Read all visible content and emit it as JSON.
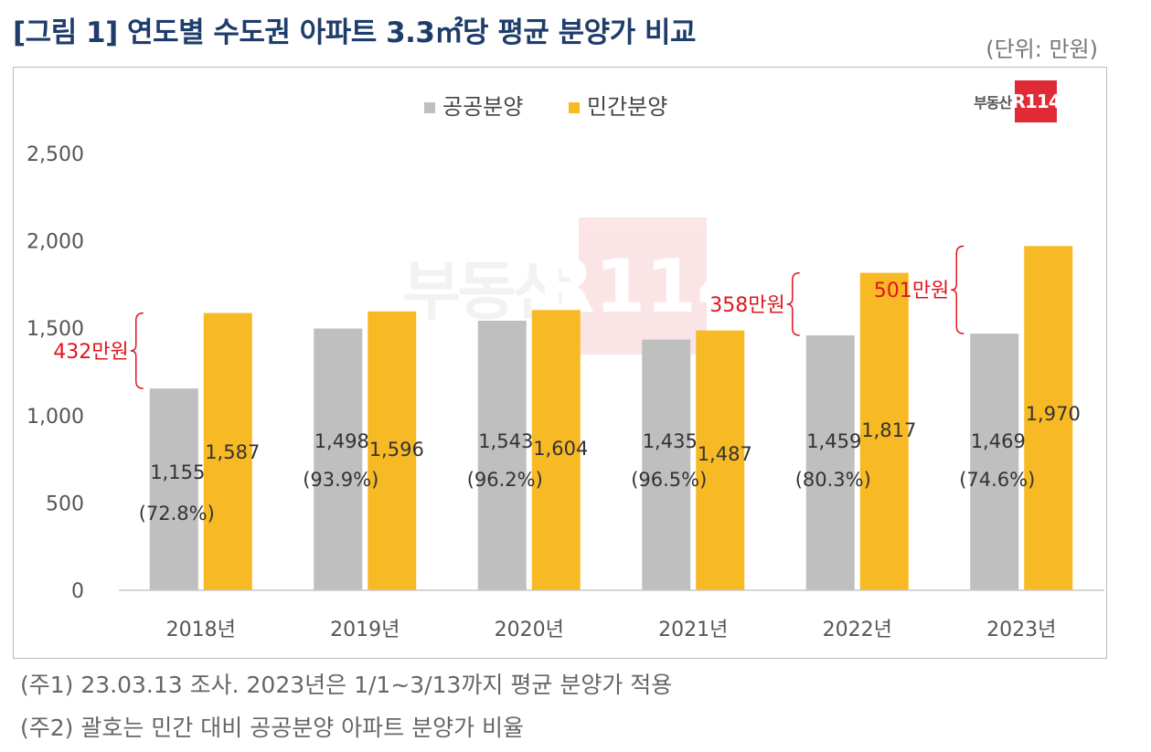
{
  "title": "[그림 1] 연도별 수도권 아파트 3.3㎡당 평균 분양가 비교",
  "unit": "(단위: 만원)",
  "logo": {
    "text": "부동산",
    "box": "R114"
  },
  "watermark": {
    "text": "부동산",
    "box": "R114"
  },
  "notes": [
    "(주1) 23.03.13 조사. 2023년은 1/1~3/13까지 평균 분양가 적용",
    "(주2) 괄호는 민간 대비 공공분양 아파트 분양가 비율"
  ],
  "colors": {
    "public": "#bfbfbf",
    "private": "#f7b924",
    "annotation": "#e0151e",
    "axis_text": "#555555"
  },
  "chart_data": {
    "type": "bar",
    "categories": [
      "2018년",
      "2019년",
      "2020년",
      "2021년",
      "2022년",
      "2023년"
    ],
    "series": [
      {
        "name": "공공분양",
        "values": [
          1155,
          1498,
          1543,
          1435,
          1459,
          1469
        ],
        "labels": [
          "1,155",
          "1,498",
          "1,543",
          "1,435",
          "1,459",
          "1,469"
        ]
      },
      {
        "name": "민간분양",
        "values": [
          1587,
          1596,
          1604,
          1487,
          1817,
          1970
        ],
        "labels": [
          "1,587",
          "1,596",
          "1,604",
          "1,487",
          "1,817",
          "1,970"
        ]
      }
    ],
    "ratio_labels": [
      "(72.8%)",
      "(93.9%)",
      "(96.2%)",
      "(96.5%)",
      "(80.3%)",
      "(74.6%)"
    ],
    "gap_annotations": [
      {
        "category_index": 0,
        "label": "432만원"
      },
      {
        "category_index": 4,
        "label": "358만원"
      },
      {
        "category_index": 5,
        "label": "501만원"
      }
    ],
    "y_ticks": [
      "0",
      "500",
      "1,000",
      "1,500",
      "2,000",
      "2,500"
    ],
    "ylim": [
      0,
      2500
    ],
    "grid": false,
    "legend": "top-center"
  }
}
